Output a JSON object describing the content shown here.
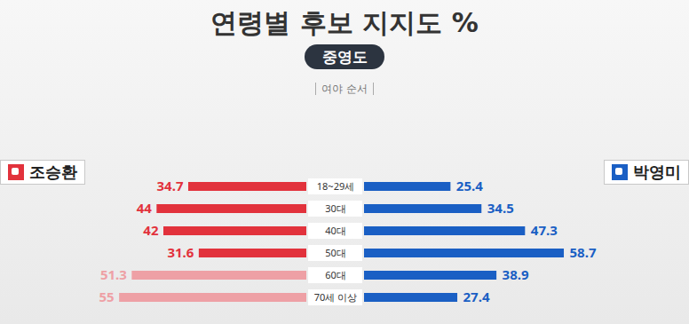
{
  "chart_data": {
    "type": "bar",
    "orientation": "horizontal",
    "title": "연령별 후보 지지도 %",
    "subtitle": "중영도",
    "annotations": [
      "여야 순서"
    ],
    "categories": [
      "18~29세",
      "30대",
      "40대",
      "50대",
      "60대",
      "70세 이상"
    ],
    "series": [
      {
        "name": "조승환",
        "color": "#e2323c",
        "colors": [
          "#e2323c",
          "#e2323c",
          "#e2323c",
          "#e2323c",
          "#eea0a5",
          "#eea0a5"
        ],
        "values": [
          34.7,
          44,
          42,
          31.6,
          51.3,
          55
        ]
      },
      {
        "name": "박영미",
        "color": "#1a5fc4",
        "values": [
          25.4,
          34.5,
          47.3,
          58.7,
          38.9,
          27.4
        ]
      }
    ],
    "xlim": [
      0,
      60
    ],
    "tick_labels": false,
    "data_labels": true
  }
}
